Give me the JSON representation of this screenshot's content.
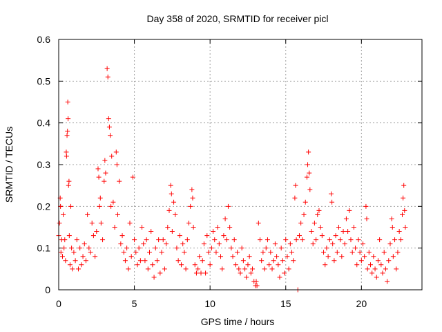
{
  "chart_data": {
    "type": "scatter",
    "title": "Day 358 of 2020, SRMTID for receiver picl",
    "xlabel": "GPS time / hours",
    "ylabel": "SRMTID / TECUs",
    "xlim": [
      0,
      24
    ],
    "ylim": [
      0,
      0.6
    ],
    "x_ticks": [
      0,
      5,
      10,
      15,
      20
    ],
    "x_tick_labels": [
      "0",
      "5",
      "10",
      "15",
      "20"
    ],
    "y_ticks": [
      0,
      0.1,
      0.2,
      0.3,
      0.4,
      0.5,
      0.6
    ],
    "y_tick_labels": [
      "0",
      "0.1",
      "0.2",
      "0.3",
      "0.4",
      "0.5",
      "0.6"
    ],
    "grid": true,
    "legend": "none",
    "marker": "+",
    "series": [
      {
        "name": "SRMTID",
        "color": "#ff0000",
        "points": [
          [
            0.0,
            0.13
          ],
          [
            0.05,
            0.16
          ],
          [
            0.1,
            0.22
          ],
          [
            0.12,
            0.2
          ],
          [
            0.15,
            0.09
          ],
          [
            0.2,
            0.12
          ],
          [
            0.25,
            0.08
          ],
          [
            0.3,
            0.18
          ],
          [
            0.35,
            0.1
          ],
          [
            0.4,
            0.12
          ],
          [
            0.45,
            0.07
          ],
          [
            0.5,
            0.33
          ],
          [
            0.52,
            0.32
          ],
          [
            0.55,
            0.37
          ],
          [
            0.58,
            0.38
          ],
          [
            0.6,
            0.45
          ],
          [
            0.62,
            0.41
          ],
          [
            0.65,
            0.25
          ],
          [
            0.68,
            0.26
          ],
          [
            0.7,
            0.13
          ],
          [
            0.75,
            0.06
          ],
          [
            0.8,
            0.2
          ],
          [
            0.85,
            0.1
          ],
          [
            0.9,
            0.05
          ],
          [
            1.0,
            0.09
          ],
          [
            1.1,
            0.07
          ],
          [
            1.2,
            0.12
          ],
          [
            1.3,
            0.05
          ],
          [
            1.4,
            0.1
          ],
          [
            1.5,
            0.06
          ],
          [
            1.6,
            0.08
          ],
          [
            1.7,
            0.11
          ],
          [
            1.8,
            0.07
          ],
          [
            1.9,
            0.18
          ],
          [
            2.0,
            0.1
          ],
          [
            2.1,
            0.09
          ],
          [
            2.2,
            0.16
          ],
          [
            2.3,
            0.13
          ],
          [
            2.4,
            0.08
          ],
          [
            2.5,
            0.14
          ],
          [
            2.6,
            0.29
          ],
          [
            2.65,
            0.27
          ],
          [
            2.7,
            0.2
          ],
          [
            2.75,
            0.22
          ],
          [
            2.8,
            0.16
          ],
          [
            2.9,
            0.12
          ],
          [
            3.0,
            0.26
          ],
          [
            3.05,
            0.31
          ],
          [
            3.1,
            0.28
          ],
          [
            3.2,
            0.53
          ],
          [
            3.25,
            0.51
          ],
          [
            3.3,
            0.41
          ],
          [
            3.35,
            0.39
          ],
          [
            3.4,
            0.37
          ],
          [
            3.45,
            0.2
          ],
          [
            3.5,
            0.32
          ],
          [
            3.6,
            0.21
          ],
          [
            3.7,
            0.15
          ],
          [
            3.8,
            0.33
          ],
          [
            3.85,
            0.3
          ],
          [
            3.9,
            0.18
          ],
          [
            4.0,
            0.26
          ],
          [
            4.1,
            0.11
          ],
          [
            4.2,
            0.13
          ],
          [
            4.3,
            0.09
          ],
          [
            4.4,
            0.07
          ],
          [
            4.5,
            0.1
          ],
          [
            4.6,
            0.05
          ],
          [
            4.7,
            0.16
          ],
          [
            4.8,
            0.08
          ],
          [
            4.9,
            0.27
          ],
          [
            5.0,
            0.12
          ],
          [
            5.1,
            0.09
          ],
          [
            5.2,
            0.06
          ],
          [
            5.3,
            0.1
          ],
          [
            5.4,
            0.07
          ],
          [
            5.5,
            0.15
          ],
          [
            5.6,
            0.11
          ],
          [
            5.7,
            0.07
          ],
          [
            5.8,
            0.12
          ],
          [
            5.9,
            0.05
          ],
          [
            6.0,
            0.09
          ],
          [
            6.1,
            0.14
          ],
          [
            6.2,
            0.06
          ],
          [
            6.3,
            0.03
          ],
          [
            6.4,
            0.1
          ],
          [
            6.5,
            0.07
          ],
          [
            6.6,
            0.12
          ],
          [
            6.7,
            0.04
          ],
          [
            6.8,
            0.09
          ],
          [
            6.9,
            0.12
          ],
          [
            7.0,
            0.05
          ],
          [
            7.1,
            0.11
          ],
          [
            7.2,
            0.15
          ],
          [
            7.3,
            0.19
          ],
          [
            7.4,
            0.25
          ],
          [
            7.45,
            0.23
          ],
          [
            7.5,
            0.14
          ],
          [
            7.6,
            0.21
          ],
          [
            7.7,
            0.18
          ],
          [
            7.8,
            0.1
          ],
          [
            7.9,
            0.07
          ],
          [
            8.0,
            0.13
          ],
          [
            8.1,
            0.06
          ],
          [
            8.2,
            0.11
          ],
          [
            8.3,
            0.09
          ],
          [
            8.4,
            0.05
          ],
          [
            8.5,
            0.12
          ],
          [
            8.6,
            0.16
          ],
          [
            8.7,
            0.2
          ],
          [
            8.8,
            0.24
          ],
          [
            8.85,
            0.22
          ],
          [
            8.9,
            0.15
          ],
          [
            9.0,
            0.06
          ],
          [
            9.1,
            0.04
          ],
          [
            9.2,
            0.05
          ],
          [
            9.3,
            0.08
          ],
          [
            9.4,
            0.04
          ],
          [
            9.5,
            0.07
          ],
          [
            9.6,
            0.11
          ],
          [
            9.7,
            0.04
          ],
          [
            9.8,
            0.13
          ],
          [
            9.9,
            0.09
          ],
          [
            10.0,
            0.06
          ],
          [
            10.1,
            0.1
          ],
          [
            10.2,
            0.14
          ],
          [
            10.3,
            0.12
          ],
          [
            10.4,
            0.09
          ],
          [
            10.5,
            0.15
          ],
          [
            10.6,
            0.11
          ],
          [
            10.7,
            0.08
          ],
          [
            10.8,
            0.05
          ],
          [
            10.9,
            0.13
          ],
          [
            11.0,
            0.17
          ],
          [
            11.1,
            0.12
          ],
          [
            11.2,
            0.2
          ],
          [
            11.3,
            0.15
          ],
          [
            11.4,
            0.1
          ],
          [
            11.5,
            0.08
          ],
          [
            11.6,
            0.12
          ],
          [
            11.7,
            0.06
          ],
          [
            11.8,
            0.09
          ],
          [
            11.9,
            0.05
          ],
          [
            12.0,
            0.04
          ],
          [
            12.1,
            0.1
          ],
          [
            12.2,
            0.07
          ],
          [
            12.3,
            0.05
          ],
          [
            12.4,
            0.03
          ],
          [
            12.5,
            0.06
          ],
          [
            12.6,
            0.08
          ],
          [
            12.7,
            0.04
          ],
          [
            12.8,
            0.05
          ],
          [
            12.9,
            0.02
          ],
          [
            13.0,
            0.01
          ],
          [
            13.05,
            0.02
          ],
          [
            13.1,
            0.01
          ],
          [
            13.2,
            0.16
          ],
          [
            13.3,
            0.12
          ],
          [
            13.4,
            0.07
          ],
          [
            13.5,
            0.09
          ],
          [
            13.6,
            0.05
          ],
          [
            13.7,
            0.1
          ],
          [
            13.8,
            0.12
          ],
          [
            13.9,
            0.06
          ],
          [
            14.0,
            0.09
          ],
          [
            14.1,
            0.05
          ],
          [
            14.2,
            0.07
          ],
          [
            14.3,
            0.11
          ],
          [
            14.4,
            0.08
          ],
          [
            14.5,
            0.06
          ],
          [
            14.6,
            0.03
          ],
          [
            14.7,
            0.1
          ],
          [
            14.8,
            0.07
          ],
          [
            14.9,
            0.04
          ],
          [
            15.0,
            0.12
          ],
          [
            15.1,
            0.08
          ],
          [
            15.2,
            0.05
          ],
          [
            15.3,
            0.11
          ],
          [
            15.4,
            0.09
          ],
          [
            15.5,
            0.07
          ],
          [
            15.6,
            0.22
          ],
          [
            15.65,
            0.25
          ],
          [
            15.7,
            0.12
          ],
          [
            15.8,
            0.0
          ],
          [
            15.9,
            0.13
          ],
          [
            16.0,
            0.16
          ],
          [
            16.1,
            0.12
          ],
          [
            16.2,
            0.18
          ],
          [
            16.3,
            0.21
          ],
          [
            16.4,
            0.27
          ],
          [
            16.45,
            0.3
          ],
          [
            16.5,
            0.33
          ],
          [
            16.55,
            0.28
          ],
          [
            16.6,
            0.24
          ],
          [
            16.7,
            0.14
          ],
          [
            16.8,
            0.11
          ],
          [
            16.9,
            0.16
          ],
          [
            17.0,
            0.12
          ],
          [
            17.1,
            0.18
          ],
          [
            17.2,
            0.19
          ],
          [
            17.3,
            0.15
          ],
          [
            17.4,
            0.13
          ],
          [
            17.5,
            0.09
          ],
          [
            17.6,
            0.06
          ],
          [
            17.7,
            0.1
          ],
          [
            17.8,
            0.08
          ],
          [
            17.9,
            0.12
          ],
          [
            18.0,
            0.23
          ],
          [
            18.05,
            0.21
          ],
          [
            18.1,
            0.11
          ],
          [
            18.2,
            0.07
          ],
          [
            18.3,
            0.13
          ],
          [
            18.4,
            0.09
          ],
          [
            18.5,
            0.15
          ],
          [
            18.6,
            0.12
          ],
          [
            18.7,
            0.08
          ],
          [
            18.8,
            0.14
          ],
          [
            18.9,
            0.11
          ],
          [
            19.0,
            0.17
          ],
          [
            19.1,
            0.14
          ],
          [
            19.2,
            0.19
          ],
          [
            19.3,
            0.12
          ],
          [
            19.4,
            0.09
          ],
          [
            19.5,
            0.15
          ],
          [
            19.6,
            0.1
          ],
          [
            19.7,
            0.06
          ],
          [
            19.8,
            0.12
          ],
          [
            19.9,
            0.09
          ],
          [
            20.0,
            0.07
          ],
          [
            20.1,
            0.11
          ],
          [
            20.2,
            0.08
          ],
          [
            20.3,
            0.2
          ],
          [
            20.35,
            0.17
          ],
          [
            20.4,
            0.05
          ],
          [
            20.5,
            0.09
          ],
          [
            20.6,
            0.06
          ],
          [
            20.7,
            0.04
          ],
          [
            20.8,
            0.08
          ],
          [
            20.9,
            0.05
          ],
          [
            21.0,
            0.03
          ],
          [
            21.1,
            0.07
          ],
          [
            21.2,
            0.12
          ],
          [
            21.3,
            0.06
          ],
          [
            21.4,
            0.04
          ],
          [
            21.5,
            0.09
          ],
          [
            21.6,
            0.05
          ],
          [
            21.7,
            0.02
          ],
          [
            21.8,
            0.07
          ],
          [
            21.9,
            0.11
          ],
          [
            22.0,
            0.17
          ],
          [
            22.05,
            0.15
          ],
          [
            22.1,
            0.08
          ],
          [
            22.2,
            0.12
          ],
          [
            22.3,
            0.05
          ],
          [
            22.4,
            0.09
          ],
          [
            22.5,
            0.14
          ],
          [
            22.6,
            0.12
          ],
          [
            22.7,
            0.18
          ],
          [
            22.75,
            0.22
          ],
          [
            22.8,
            0.25
          ],
          [
            22.85,
            0.19
          ],
          [
            22.9,
            0.15
          ]
        ]
      }
    ]
  }
}
